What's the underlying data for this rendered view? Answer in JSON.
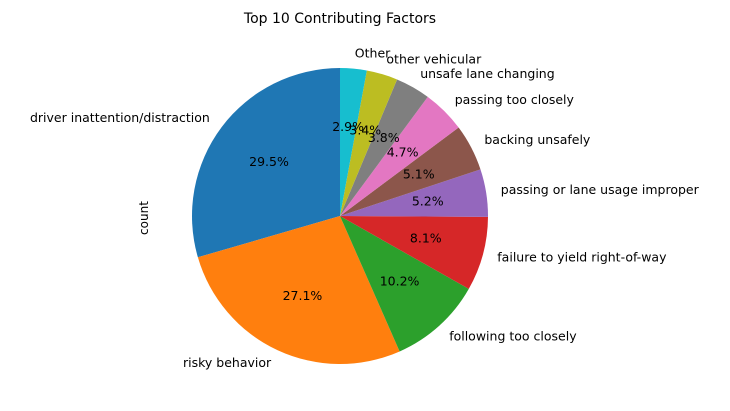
{
  "chart_data": {
    "type": "pie",
    "title": "Top 10 Contributing Factors",
    "ylabel": "count",
    "xlabel": "",
    "start_angle_degrees": 90,
    "direction": "counterclockwise",
    "slices": [
      {
        "label": "driver inattention/distraction",
        "percent": 29.5,
        "percent_label": "29.5%",
        "color": "#1f77b4"
      },
      {
        "label": "risky behavior",
        "percent": 27.1,
        "percent_label": "27.1%",
        "color": "#ff7f0e"
      },
      {
        "label": "following too closely",
        "percent": 10.2,
        "percent_label": "10.2%",
        "color": "#2ca02c"
      },
      {
        "label": "failure to yield right-of-way",
        "percent": 8.1,
        "percent_label": "8.1%",
        "color": "#d62728"
      },
      {
        "label": "passing or lane usage improper",
        "percent": 5.2,
        "percent_label": "5.2%",
        "color": "#9467bd"
      },
      {
        "label": "backing unsafely",
        "percent": 5.1,
        "percent_label": "5.1%",
        "color": "#8c564b"
      },
      {
        "label": "passing too closely",
        "percent": 4.7,
        "percent_label": "4.7%",
        "color": "#e377c2"
      },
      {
        "label": "unsafe lane changing",
        "percent": 3.8,
        "percent_label": "3.8%",
        "color": "#7f7f7f"
      },
      {
        "label": "other vehicular",
        "percent": 3.4,
        "percent_label": "3.4%",
        "color": "#bcbd22"
      },
      {
        "label": "Other",
        "percent": 2.9,
        "percent_label": "2.9%",
        "color": "#17becf"
      }
    ]
  }
}
